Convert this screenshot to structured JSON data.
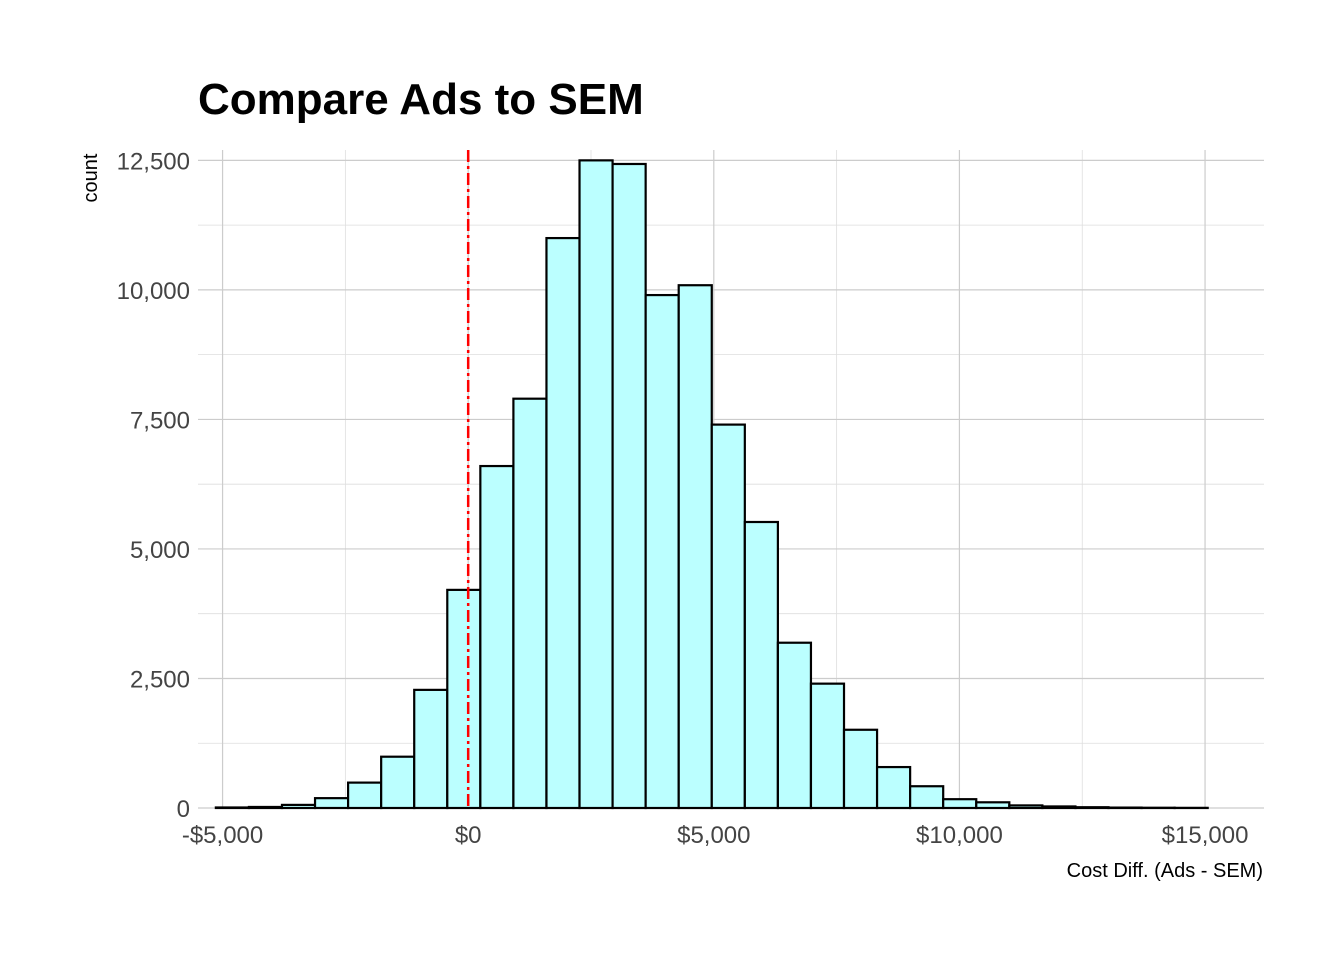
{
  "chart_data": {
    "type": "bar",
    "title": "Compare Ads to SEM",
    "xlabel": "Cost Diff. (Ads - SEM)",
    "ylabel": "count",
    "x_tick_labels": [
      "-$5,000",
      "$0",
      "$5,000",
      "$10,000",
      "$15,000"
    ],
    "x_ticks": [
      -5000,
      0,
      5000,
      10000,
      15000
    ],
    "y_tick_labels": [
      "0",
      "2,500",
      "5,000",
      "7,500",
      "10,000",
      "12,500"
    ],
    "y_ticks": [
      0,
      2500,
      5000,
      7500,
      10000,
      12500
    ],
    "xlim": [
      -5500,
      16200
    ],
    "ylim": [
      0,
      12700
    ],
    "bin_width": 673,
    "bins": [
      {
        "center": -4800,
        "count": 10
      },
      {
        "center": -4127,
        "count": 20
      },
      {
        "center": -3454,
        "count": 60
      },
      {
        "center": -2781,
        "count": 190
      },
      {
        "center": -2108,
        "count": 490
      },
      {
        "center": -1435,
        "count": 990
      },
      {
        "center": -762,
        "count": 2280
      },
      {
        "center": -89,
        "count": 4210
      },
      {
        "center": 584,
        "count": 6600
      },
      {
        "center": 1257,
        "count": 7900
      },
      {
        "center": 1930,
        "count": 11000
      },
      {
        "center": 2603,
        "count": 12500
      },
      {
        "center": 3276,
        "count": 12430
      },
      {
        "center": 3949,
        "count": 9900
      },
      {
        "center": 4622,
        "count": 10090
      },
      {
        "center": 5295,
        "count": 7400
      },
      {
        "center": 5968,
        "count": 5520
      },
      {
        "center": 6641,
        "count": 3190
      },
      {
        "center": 7314,
        "count": 2400
      },
      {
        "center": 7987,
        "count": 1510
      },
      {
        "center": 8660,
        "count": 790
      },
      {
        "center": 9333,
        "count": 420
      },
      {
        "center": 10006,
        "count": 170
      },
      {
        "center": 10679,
        "count": 110
      },
      {
        "center": 11352,
        "count": 50
      },
      {
        "center": 12025,
        "count": 30
      },
      {
        "center": 12698,
        "count": 15
      },
      {
        "center": 13371,
        "count": 8
      },
      {
        "center": 14044,
        "count": 5
      },
      {
        "center": 14717,
        "count": 3
      }
    ],
    "reference_line": {
      "x": 0,
      "color": "#ff0000",
      "style": "dot-dash"
    },
    "bar_fill": "#bbffff",
    "bar_stroke": "#000000",
    "grid": true,
    "legend": "none"
  }
}
